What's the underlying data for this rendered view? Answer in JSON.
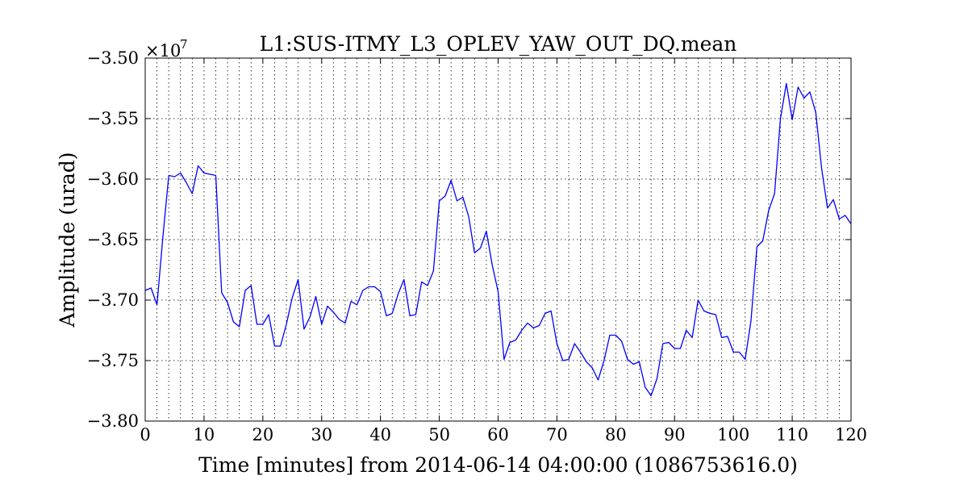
{
  "chart_data": {
    "type": "line",
    "title": "L1:SUS-ITMY_L3_OPLEV_YAW_OUT_DQ.mean",
    "xlabel": "Time [minutes] from 2014-06-14 04:00:00 (1086753616.0)",
    "ylabel": "Amplitude (urad)",
    "y_offset_label": "×10",
    "y_offset_exponent": "7",
    "xlim": [
      0,
      120
    ],
    "ylim": [
      -3.8,
      -3.5
    ],
    "x_ticks": [
      0,
      10,
      20,
      30,
      40,
      50,
      60,
      70,
      80,
      90,
      100,
      110,
      120
    ],
    "x_tick_labels": [
      "0",
      "10",
      "20",
      "30",
      "40",
      "50",
      "60",
      "70",
      "80",
      "90",
      "100",
      "110",
      "120"
    ],
    "y_ticks": [
      -3.8,
      -3.75,
      -3.7,
      -3.65,
      -3.6,
      -3.55,
      -3.5
    ],
    "y_tick_labels": [
      "−3.80",
      "−3.75",
      "−3.70",
      "−3.65",
      "−3.60",
      "−3.55",
      "−3.50"
    ],
    "x_minor_grid_step": 2,
    "grid": true,
    "line_color": "#0000ff",
    "series": [
      {
        "x": [
          0,
          1,
          2,
          3,
          4,
          5,
          6,
          7,
          8,
          9,
          10,
          11,
          12,
          13,
          14,
          15,
          16,
          17,
          18,
          19,
          20,
          21,
          22,
          23,
          24,
          25,
          26,
          27,
          28,
          29,
          30,
          31,
          32,
          33,
          34,
          35,
          36,
          37,
          38,
          39,
          40,
          41,
          42,
          43,
          44,
          45,
          46,
          47,
          48,
          49,
          50,
          51,
          52,
          53,
          54,
          55,
          56,
          57,
          58,
          59,
          60,
          61,
          62,
          63,
          64,
          65,
          66,
          67,
          68,
          69,
          70,
          71,
          72,
          73,
          74,
          75,
          76,
          77,
          78,
          79,
          80,
          81,
          82,
          83,
          84,
          85,
          86,
          87,
          88,
          89,
          90,
          91,
          92,
          93,
          94,
          95,
          96,
          97,
          98,
          99,
          100,
          101,
          102,
          103,
          104,
          105,
          106,
          107,
          108,
          109,
          110,
          111,
          112,
          113,
          114,
          115,
          116,
          117,
          118,
          119,
          120
        ],
        "y": [
          -3.692,
          -3.69,
          -3.704,
          -3.648,
          -3.597,
          -3.598,
          -3.595,
          -3.603,
          -3.612,
          -3.589,
          -3.595,
          -3.596,
          -3.597,
          -3.694,
          -3.702,
          -3.718,
          -3.722,
          -3.692,
          -3.688,
          -3.72,
          -3.72,
          -3.712,
          -3.738,
          -3.738,
          -3.72,
          -3.698,
          -3.683,
          -3.724,
          -3.714,
          -3.697,
          -3.72,
          -3.705,
          -3.71,
          -3.716,
          -3.719,
          -3.701,
          -3.704,
          -3.692,
          -3.689,
          -3.689,
          -3.693,
          -3.713,
          -3.711,
          -3.695,
          -3.683,
          -3.713,
          -3.712,
          -3.685,
          -3.688,
          -3.676,
          -3.618,
          -3.614,
          -3.601,
          -3.618,
          -3.615,
          -3.631,
          -3.661,
          -3.657,
          -3.643,
          -3.671,
          -3.693,
          -3.749,
          -3.735,
          -3.733,
          -3.725,
          -3.719,
          -3.723,
          -3.721,
          -3.711,
          -3.709,
          -3.736,
          -3.75,
          -3.749,
          -3.736,
          -3.743,
          -3.751,
          -3.756,
          -3.766,
          -3.75,
          -3.729,
          -3.729,
          -3.734,
          -3.749,
          -3.753,
          -3.751,
          -3.772,
          -3.779,
          -3.765,
          -3.736,
          -3.735,
          -3.74,
          -3.74,
          -3.725,
          -3.731,
          -3.7,
          -3.709,
          -3.711,
          -3.712,
          -3.731,
          -3.73,
          -3.743,
          -3.743,
          -3.749,
          -3.717,
          -3.656,
          -3.651,
          -3.626,
          -3.612,
          -3.55,
          -3.521,
          -3.551,
          -3.524,
          -3.533,
          -3.528,
          -3.545,
          -3.591,
          -3.624,
          -3.617,
          -3.633,
          -3.63,
          -3.637
        ]
      }
    ]
  }
}
